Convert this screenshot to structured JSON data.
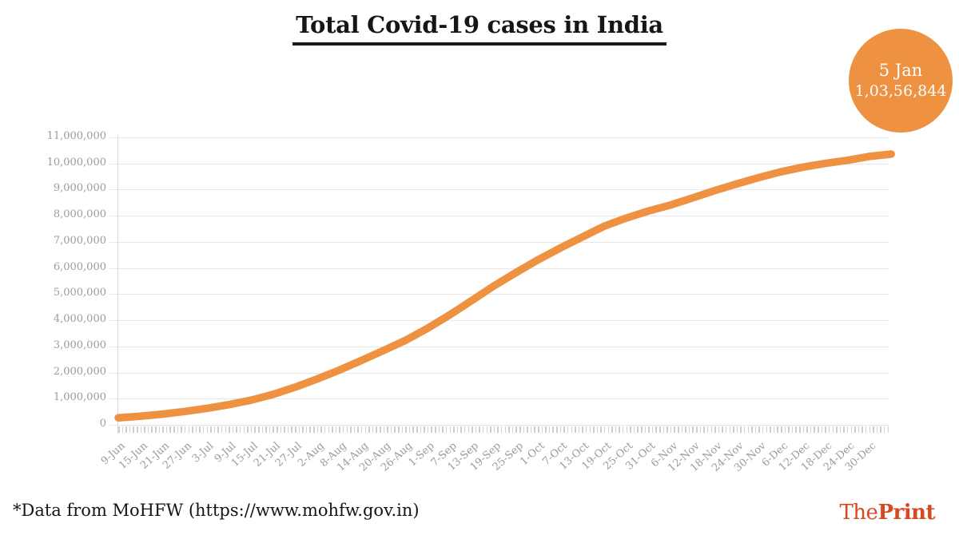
{
  "page": {
    "background": "#ffffff"
  },
  "header": {
    "title": "Total Covid-19 cases in India"
  },
  "badge": {
    "date": "5 Jan",
    "value": "1,03,56,844",
    "color": "#EE9140",
    "text_color": "#ffffff"
  },
  "footer": {
    "source_note": "*Data from MoHFW (https://www.mohfw.gov.in)",
    "brand": {
      "part1": "The",
      "part2": "Print",
      "color": "#D54A1F"
    }
  },
  "chart_data": {
    "type": "line",
    "title": "Total Covid-19 cases in India",
    "xlabel": "",
    "ylabel": "",
    "ylim": [
      0,
      11000000
    ],
    "y_tick_step": 1000000,
    "y_tick_labels": [
      "0",
      "1,000,000",
      "2,000,000",
      "3,000,000",
      "4,000,000",
      "5,000,000",
      "6,000,000",
      "7,000,000",
      "8,000,000",
      "9,000,000",
      "10,000,000",
      "11,000,000"
    ],
    "x_tick_labels": [
      "9-Jun",
      "15-Jun",
      "21-Jun",
      "27-Jun",
      "3-Jul",
      "9-Jul",
      "15-Jul",
      "21-Jul",
      "27-Jul",
      "2-Aug",
      "8-Aug",
      "14-Aug",
      "20-Aug",
      "26-Aug",
      "1-Sep",
      "7-Sep",
      "13-Sep",
      "19-Sep",
      "25-Sep",
      "1-Oct",
      "7-Oct",
      "13-Oct",
      "19-Oct",
      "25-Oct",
      "31-Oct",
      "6-Nov",
      "12-Nov",
      "18-Nov",
      "24-Nov",
      "30-Nov",
      "6-Dec",
      "12-Dec",
      "18-Dec",
      "24-Dec",
      "30-Dec"
    ],
    "x_major_tick_interval_days": 6,
    "x_minor_tick_interval_days": 1,
    "grid": "horizontal",
    "legend": "none",
    "line_color": "#EE9140",
    "axis_text_color": "#9b9b9b",
    "series": [
      {
        "name": "Total Covid-19 cases",
        "points": [
          {
            "label": "9-Jun",
            "day": 0,
            "value": 270000
          },
          {
            "label": "15-Jun",
            "day": 6,
            "value": 330000
          },
          {
            "label": "21-Jun",
            "day": 12,
            "value": 410000
          },
          {
            "label": "27-Jun",
            "day": 18,
            "value": 510000
          },
          {
            "label": "3-Jul",
            "day": 24,
            "value": 630000
          },
          {
            "label": "9-Jul",
            "day": 30,
            "value": 770000
          },
          {
            "label": "15-Jul",
            "day": 36,
            "value": 940000
          },
          {
            "label": "21-Jul",
            "day": 42,
            "value": 1160000
          },
          {
            "label": "27-Jul",
            "day": 48,
            "value": 1440000
          },
          {
            "label": "2-Aug",
            "day": 54,
            "value": 1750000
          },
          {
            "label": "8-Aug",
            "day": 60,
            "value": 2090000
          },
          {
            "label": "14-Aug",
            "day": 66,
            "value": 2460000
          },
          {
            "label": "20-Aug",
            "day": 72,
            "value": 2840000
          },
          {
            "label": "26-Aug",
            "day": 78,
            "value": 3230000
          },
          {
            "label": "1-Sep",
            "day": 84,
            "value": 3690000
          },
          {
            "label": "7-Sep",
            "day": 90,
            "value": 4200000
          },
          {
            "label": "13-Sep",
            "day": 96,
            "value": 4750000
          },
          {
            "label": "19-Sep",
            "day": 102,
            "value": 5310000
          },
          {
            "label": "25-Sep",
            "day": 108,
            "value": 5820000
          },
          {
            "label": "1-Oct",
            "day": 114,
            "value": 6310000
          },
          {
            "label": "7-Oct",
            "day": 120,
            "value": 6760000
          },
          {
            "label": "13-Oct",
            "day": 126,
            "value": 7180000
          },
          {
            "label": "19-Oct",
            "day": 132,
            "value": 7600000
          },
          {
            "label": "25-Oct",
            "day": 138,
            "value": 7910000
          },
          {
            "label": "31-Oct",
            "day": 144,
            "value": 8180000
          },
          {
            "label": "6-Nov",
            "day": 150,
            "value": 8410000
          },
          {
            "label": "12-Nov",
            "day": 156,
            "value": 8680000
          },
          {
            "label": "18-Nov",
            "day": 162,
            "value": 8960000
          },
          {
            "label": "24-Nov",
            "day": 168,
            "value": 9220000
          },
          {
            "label": "30-Nov",
            "day": 174,
            "value": 9460000
          },
          {
            "label": "6-Dec",
            "day": 180,
            "value": 9680000
          },
          {
            "label": "12-Dec",
            "day": 186,
            "value": 9860000
          },
          {
            "label": "18-Dec",
            "day": 192,
            "value": 10000000
          },
          {
            "label": "24-Dec",
            "day": 198,
            "value": 10120000
          },
          {
            "label": "30-Dec",
            "day": 204,
            "value": 10270000
          },
          {
            "label": "5-Jan",
            "day": 210,
            "value": 10356844
          }
        ]
      }
    ],
    "annotation": {
      "label": "5 Jan",
      "value_label": "1,03,56,844",
      "value": 10356844
    }
  }
}
